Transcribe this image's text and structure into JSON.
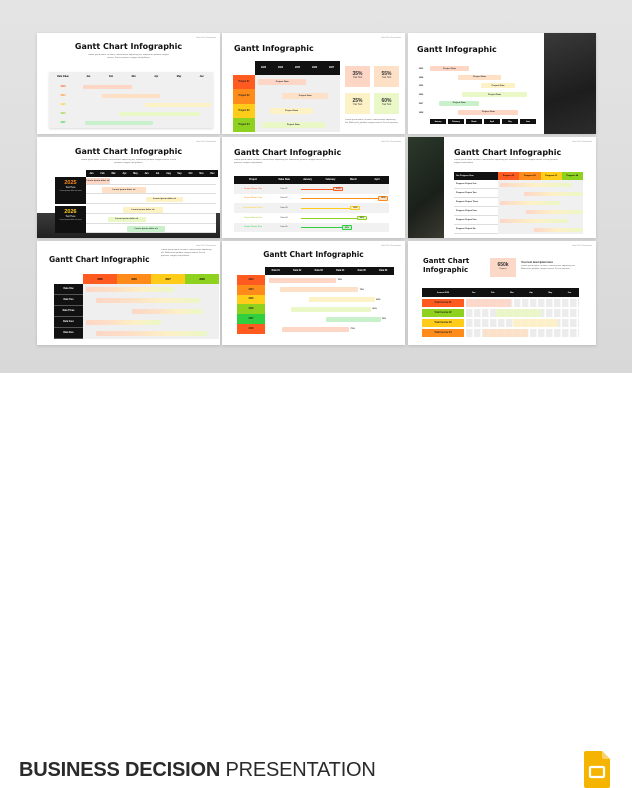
{
  "header_corner": "Gantt Chart Presentation",
  "lorem": "Lorem ipsum dolor sit amet, consectetuer adipiscing elit. Maecenas porttitor congue massa. Fusce posuere, magna sed pulvinar",
  "colors": {
    "red": "#ff5a1f",
    "orange": "#ff8c1a",
    "yellow": "#ffcc1a",
    "lime": "#8fd11f",
    "green": "#2fcf3f",
    "pastel_red": "#fdd6c6",
    "pastel_orange": "#fde0c6",
    "pastel_yellow": "#fdf1c6",
    "pastel_lime": "#eaf7c6",
    "pastel_green": "#c8f1cb"
  },
  "slides": [
    {
      "title": "Gantt Chart Infographic",
      "corner_label": "Date Value",
      "columns": [
        "Jan",
        "Feb",
        "Mar",
        "Apr",
        "May",
        "Jun"
      ],
      "rows": [
        {
          "label": "2023",
          "bar": [
            0,
            2.3
          ]
        },
        {
          "label": "2024",
          "bar": [
            0.9,
            3.6
          ]
        },
        {
          "label": "2025",
          "bar": [
            2.9,
            6
          ]
        },
        {
          "label": "2026",
          "bar": [
            1.7,
            5.5
          ]
        },
        {
          "label": "2027",
          "bar": [
            0.1,
            3.3
          ]
        }
      ]
    },
    {
      "title": "Gantt Infographic",
      "columns": [
        "2023",
        "2024",
        "2025",
        "2026",
        "2027"
      ],
      "rows": [
        {
          "label": "Project 01",
          "bar_text": "Project Data",
          "bar": [
            0.2,
            3
          ]
        },
        {
          "label": "Project 02",
          "bar_text": "Project Data",
          "bar": [
            1.6,
            4.3
          ]
        },
        {
          "label": "Project 03",
          "bar_text": "Project Data",
          "bar": [
            0.9,
            3.4
          ]
        },
        {
          "label": "Project 04",
          "bar_text": "Project Data",
          "bar": [
            0.4,
            4.1
          ]
        }
      ],
      "stats": [
        {
          "value": "35%",
          "label": "Your Text"
        },
        {
          "value": "55%",
          "label": "Your Text"
        },
        {
          "value": "25%",
          "label": "Your Text"
        },
        {
          "value": "60%",
          "label": "Your Text"
        }
      ]
    },
    {
      "title": "Gantt Infographic",
      "columns": [
        "January",
        "February",
        "March",
        "April",
        "May",
        "June"
      ],
      "rows": [
        {
          "label": "2023",
          "bar_text": "Project Data",
          "bar": [
            0,
            2.2
          ]
        },
        {
          "label": "2024",
          "bar_text": "Project Data",
          "bar": [
            1.6,
            4
          ]
        },
        {
          "label": "2025",
          "bar_text": "Project Data",
          "bar": [
            2.9,
            4.8
          ]
        },
        {
          "label": "2026",
          "bar_text": "Project Data",
          "bar": [
            1.8,
            5.5
          ]
        },
        {
          "label": "2027",
          "bar_text": "Project Data",
          "bar": [
            0.5,
            2.8
          ]
        },
        {
          "label": "2028",
          "bar_text": "Project Data",
          "bar": [
            1.6,
            5
          ]
        }
      ]
    },
    {
      "title": "Gantt Chart Infographic",
      "columns": [
        "Jan",
        "Feb",
        "Mar",
        "Apr",
        "May",
        "Jun",
        "Jul",
        "Aug",
        "Sep",
        "Oct",
        "Nov",
        "Dec"
      ],
      "groups": [
        {
          "year": "2025",
          "label": "Text Here",
          "text": "Lorem ipsum dolor sit amet"
        },
        {
          "year": "2026",
          "label": "Text Here",
          "text": "Lorem ipsum dolor sit amet"
        }
      ],
      "rows": [
        {
          "bar_text": "Lorem ipsum dolor sit",
          "bar": [
            0,
            2.2
          ]
        },
        {
          "bar_text": "Lorem ipsum dolor sit",
          "bar": [
            1.5,
            5.5
          ]
        },
        {
          "bar_text": "Lorem ipsum dolor sit",
          "bar": [
            5.5,
            9
          ]
        },
        {
          "bar_text": "Lorem ipsum dolor sit",
          "bar": [
            3.4,
            7.1
          ]
        },
        {
          "bar_text": "Lorem ipsum dolor sit",
          "bar": [
            2,
            5.5
          ]
        },
        {
          "bar_text": "Lorem ipsum dolor sit",
          "bar": [
            3.8,
            7.3
          ]
        }
      ]
    },
    {
      "title": "Gantt Chart Infographic",
      "columns": [
        "Project",
        "Value Data",
        "January",
        "February",
        "March",
        "April"
      ],
      "rows": [
        {
          "label": "Project Name One",
          "value": "Data 01",
          "pct": "20%",
          "bar": [
            0,
            1.5
          ]
        },
        {
          "label": "Project Name Two",
          "value": "Data 02",
          "pct": "90%",
          "bar": [
            0,
            3.6
          ]
        },
        {
          "label": "Project Name Three",
          "value": "Data 03",
          "pct": "50%",
          "bar": [
            0,
            2.3
          ]
        },
        {
          "label": "Project Name Four",
          "value": "Data 04",
          "pct": "60%",
          "bar": [
            0,
            2.6
          ]
        },
        {
          "label": "Project Name Five",
          "value": "Data 05",
          "pct": "30%",
          "bar": [
            0,
            1.9
          ]
        }
      ]
    },
    {
      "title": "Gantt Chart Infographic",
      "corner_label": "Our Progress Here",
      "columns": [
        "Progress 01",
        "Progress 02",
        "Progress 03",
        "Progress 04"
      ],
      "rows": [
        {
          "label": "Progress Project One",
          "bar": [
            0.1,
            3.5
          ]
        },
        {
          "label": "Progress Project Two",
          "bar": [
            1.2,
            4
          ]
        },
        {
          "label": "Progress Project Three",
          "bar": [
            0.1,
            2.9
          ]
        },
        {
          "label": "Progress Project Four",
          "bar": [
            1.3,
            4
          ]
        },
        {
          "label": "Progress Project Five",
          "bar": [
            0.1,
            3.3
          ]
        },
        {
          "label": "Progress Project Six",
          "bar": [
            1.7,
            4
          ]
        }
      ]
    },
    {
      "title": "Gantt Chart Infographic",
      "columns": [
        "2025",
        "2026",
        "2027",
        "2028"
      ],
      "rows": [
        {
          "label": "Data One",
          "bar": [
            0.1,
            2.8
          ]
        },
        {
          "label": "Data Two",
          "bar": [
            0.4,
            3.6
          ]
        },
        {
          "label": "Data Three",
          "bar": [
            1.5,
            3.7
          ]
        },
        {
          "label": "Data Four",
          "bar": [
            0.1,
            2.4
          ]
        },
        {
          "label": "Data Five",
          "bar": [
            0.4,
            3.8
          ]
        }
      ]
    },
    {
      "title": "Gantt Chart Infographic",
      "columns": [
        "Data 01",
        "Data 02",
        "Data 03",
        "Data 04",
        "Data 05",
        "Data 06"
      ],
      "rows": [
        {
          "label": "2023",
          "pct": "70%",
          "bar": [
            0.2,
            3.9
          ]
        },
        {
          "label": "2024",
          "pct": "75%",
          "bar": [
            0.8,
            5.1
          ]
        },
        {
          "label": "2025",
          "pct": "60%",
          "bar": [
            2.4,
            6
          ]
        },
        {
          "label": "2026",
          "pct": "60%",
          "bar": [
            1.4,
            5.8
          ]
        },
        {
          "label": "2027",
          "pct": "70%",
          "bar": [
            3.3,
            6.3
          ]
        },
        {
          "label": "2028",
          "pct": "75%",
          "bar": [
            0.9,
            4.6
          ]
        }
      ]
    },
    {
      "title": "Gantt Chart Infographic",
      "stat": {
        "value": "650k",
        "label": "Projects"
      },
      "desc_title": "Your text description here",
      "corner_label": "Income 2030",
      "columns": [
        "Jan",
        "Feb",
        "Mar",
        "Apr",
        "May",
        "Jun"
      ],
      "rows": [
        {
          "label": "Total Income 01",
          "bar": [
            0,
            2.4
          ]
        },
        {
          "label": "Total Income 02",
          "bar": [
            1.6,
            4
          ]
        },
        {
          "label": "Total Income 03",
          "bar": [
            2.5,
            4.9
          ]
        },
        {
          "label": "Total Income 04",
          "bar": [
            0.9,
            3.3
          ]
        }
      ]
    }
  ],
  "footer": {
    "title_bold": "BUSINESS DECISION",
    "title_light": "PRESENTATION",
    "icon": "google-slides-icon"
  }
}
